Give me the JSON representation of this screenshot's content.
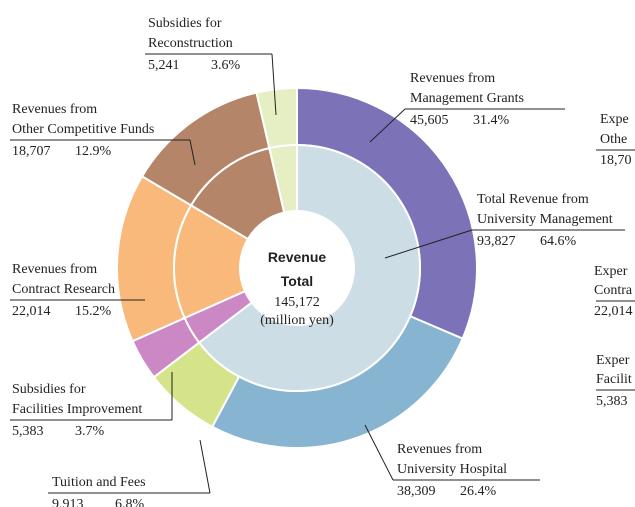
{
  "chart_data": {
    "type": "donut",
    "center": {
      "title_lines": [
        "Revenue",
        "Total"
      ],
      "value": 145172,
      "value_label": "145,172",
      "unit": "(million yen)"
    },
    "slices": [
      {
        "label_lines": [
          "Revenues from",
          "Management Grants"
        ],
        "value": 45605,
        "value_label": "45,605",
        "percent": 31.4,
        "percent_label": "31.4%",
        "color": "#7b72b8"
      },
      {
        "label_lines": [
          "Revenues from",
          "University Hospital"
        ],
        "value": 38309,
        "value_label": "38,309",
        "percent": 26.4,
        "percent_label": "26.4%",
        "color": "#87b4d0"
      },
      {
        "label_lines": [
          "Tuition and Fees"
        ],
        "value": 9913,
        "value_label": "9,913",
        "percent": 6.8,
        "percent_label": "6.8%",
        "color": "#d5e38a"
      },
      {
        "label_lines": [
          "Subsidies for",
          "Facilities Improvement"
        ],
        "value": 5383,
        "value_label": "5,383",
        "percent": 3.7,
        "percent_label": "3.7%",
        "color": "#cc88c4"
      },
      {
        "label_lines": [
          "Revenues from",
          "Contract Research"
        ],
        "value": 22014,
        "value_label": "22,014",
        "percent": 15.2,
        "percent_label": "15.2%",
        "color": "#f9b97a"
      },
      {
        "label_lines": [
          "Revenues from",
          "Other Competitive Funds"
        ],
        "value": 18707,
        "value_label": "18,707",
        "percent": 12.9,
        "percent_label": "12.9%",
        "color": "#b5856a"
      },
      {
        "label_lines": [
          "Subsidies for",
          "Reconstruction"
        ],
        "value": 5241,
        "value_label": "5,241",
        "percent": 3.6,
        "percent_label": "3.6%",
        "color": "#e6efc4"
      }
    ],
    "inner_group": {
      "label_lines": [
        "Total Revenue from",
        "University Management"
      ],
      "value": 93827,
      "value_label": "93,827",
      "percent": 64.6,
      "percent_label": "64.6%",
      "color": "#cddde6"
    },
    "cropped_texts": [
      "Expe",
      "Othe",
      "18,70",
      "Exper",
      "Contra",
      "22,014",
      "Exper",
      "Facilit",
      "5,383"
    ]
  }
}
